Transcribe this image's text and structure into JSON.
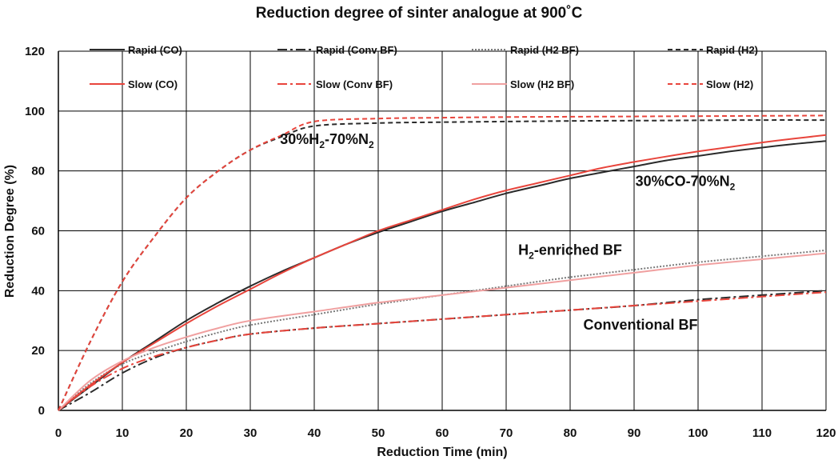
{
  "chart_data": {
    "type": "line",
    "title": "Reduction degree of sinter analogue at 900˚C",
    "xlabel": "Reduction Time (min)",
    "ylabel": "Reduction Degree (%)",
    "xlim": [
      0,
      120
    ],
    "ylim": [
      0,
      120
    ],
    "xticks": [
      0,
      10,
      20,
      30,
      40,
      50,
      60,
      70,
      80,
      90,
      100,
      110,
      120
    ],
    "yticks": [
      0,
      20,
      40,
      60,
      80,
      100,
      120
    ],
    "grid": true,
    "legend_placement": "top",
    "series": [
      {
        "name": "Rapid (CO)",
        "color": "#2b2b2b",
        "style": "solid",
        "x": [
          0,
          5,
          10,
          15,
          20,
          25,
          30,
          35,
          40,
          45,
          50,
          55,
          60,
          65,
          70,
          75,
          80,
          85,
          90,
          95,
          100,
          105,
          110,
          115,
          120
        ],
        "y": [
          0,
          8,
          16,
          23,
          30,
          36,
          41.5,
          46.5,
          51,
          55.5,
          59.5,
          63,
          66.5,
          69.5,
          72.5,
          75,
          77.5,
          79.5,
          81.5,
          83.5,
          85,
          86.5,
          87.8,
          89,
          90
        ]
      },
      {
        "name": "Rapid (Conv BF)",
        "color": "#2b2b2b",
        "style": "dashdot",
        "x": [
          0,
          5,
          10,
          15,
          20,
          25,
          30,
          40,
          50,
          60,
          70,
          80,
          90,
          100,
          110,
          120
        ],
        "y": [
          0,
          6,
          12.5,
          17.5,
          21,
          23.5,
          25.5,
          27.5,
          29,
          30.5,
          32,
          33.5,
          35,
          37,
          38.5,
          40
        ]
      },
      {
        "name": "Rapid (H2 BF)",
        "color": "#7a7a7a",
        "style": "dotted",
        "x": [
          0,
          5,
          10,
          15,
          20,
          25,
          30,
          40,
          50,
          60,
          70,
          80,
          90,
          100,
          110,
          120
        ],
        "y": [
          0,
          9,
          15.5,
          19.5,
          23,
          26,
          28.5,
          32,
          35.5,
          38.5,
          41.5,
          44.5,
          47,
          49.5,
          51.5,
          53.5
        ]
      },
      {
        "name": "Rapid (H2)",
        "color": "#2b2b2b",
        "style": "dashed",
        "x": [
          0,
          5,
          10,
          15,
          20,
          25,
          30,
          35,
          40,
          50,
          60,
          70,
          80,
          90,
          100,
          110,
          120
        ],
        "y": [
          0,
          23,
          43,
          58,
          71,
          80,
          87,
          91.5,
          95,
          96,
          96.3,
          96.5,
          96.7,
          96.8,
          96.9,
          97,
          97
        ]
      },
      {
        "name": "Slow (CO)",
        "color": "#e8453c",
        "style": "solid",
        "x": [
          0,
          5,
          10,
          15,
          20,
          25,
          30,
          35,
          40,
          45,
          50,
          55,
          60,
          65,
          70,
          75,
          80,
          85,
          90,
          95,
          100,
          105,
          110,
          115,
          120
        ],
        "y": [
          0,
          8.5,
          16,
          22.5,
          29,
          35,
          40.5,
          46,
          51,
          55.5,
          60,
          63.5,
          67,
          70.5,
          73.5,
          76,
          78.5,
          81,
          83,
          84.8,
          86.5,
          88,
          89.5,
          90.8,
          92
        ]
      },
      {
        "name": "Slow (Conv BF)",
        "color": "#e8453c",
        "style": "dashdot",
        "x": [
          0,
          5,
          10,
          15,
          20,
          25,
          30,
          40,
          50,
          60,
          70,
          80,
          90,
          100,
          110,
          120
        ],
        "y": [
          0,
          8,
          14,
          18,
          21,
          23.5,
          25.5,
          27.5,
          29,
          30.5,
          32,
          33.5,
          35,
          36.5,
          38,
          39.5
        ]
      },
      {
        "name": "Slow (H2 BF)",
        "color": "#f0a0a0",
        "style": "solid",
        "x": [
          0,
          5,
          10,
          15,
          20,
          25,
          30,
          40,
          50,
          60,
          70,
          80,
          90,
          100,
          110,
          120
        ],
        "y": [
          0,
          10,
          16.5,
          21,
          24.5,
          27.5,
          30,
          33,
          36,
          38.5,
          41,
          43.5,
          46,
          48.5,
          50.5,
          52.5
        ]
      },
      {
        "name": "Slow (H2)",
        "color": "#e8453c",
        "style": "dashed",
        "x": [
          0,
          5,
          10,
          15,
          20,
          25,
          30,
          35,
          40,
          50,
          60,
          70,
          80,
          90,
          100,
          110,
          120
        ],
        "y": [
          0,
          23,
          43,
          58,
          71,
          80,
          87,
          92,
          96.5,
          97.5,
          97.8,
          98,
          98.1,
          98.2,
          98.3,
          98.4,
          98.5
        ]
      }
    ],
    "annotations": [
      {
        "main": "30%H",
        "sub": "2",
        "mid": "-70%N",
        "sub2": "2",
        "x": 42,
        "y": 89
      },
      {
        "main": "30%CO-70%N",
        "sub": "2",
        "x": 98,
        "y": 75
      },
      {
        "main": "H",
        "sub": "2",
        "mid": "-enriched BF",
        "x": 80,
        "y": 52
      },
      {
        "main": "Conventional BF",
        "x": 91,
        "y": 27
      }
    ]
  }
}
